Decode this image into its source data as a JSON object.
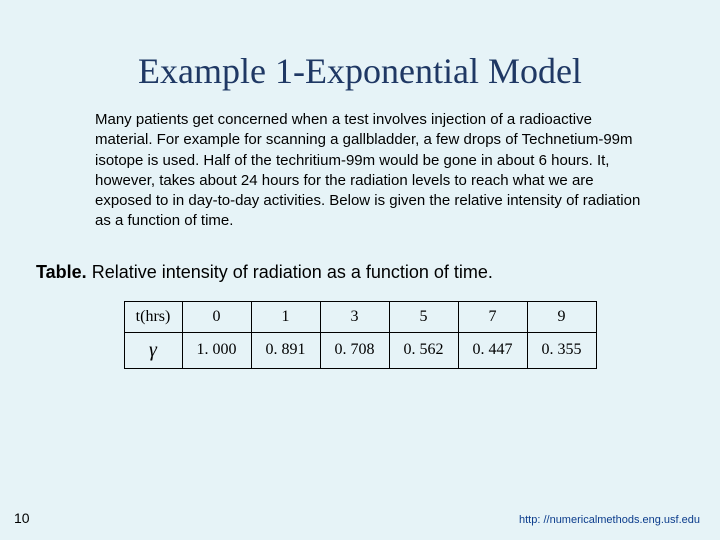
{
  "slide": {
    "title": "Example 1-Exponential Model",
    "body": "Many patients get concerned when a test involves injection of a radioactive material.  For example for scanning a gallbladder, a few drops of Technetium-99m isotope is used.  Half of the techritium-99m would be gone in about 6 hours.  It, however, takes about 24 hours for the radiation levels to reach what we are exposed to in day-to-day activities.  Below is given the relative intensity of radiation as a function of time.",
    "table_caption_bold": "Table.",
    "table_caption_rest": " Relative intensity of radiation as a function of time.",
    "page_number": "10",
    "footer_url": "http: //numericalmethods.eng.usf.edu"
  },
  "table": {
    "type": "table",
    "row_labels": [
      "t(hrs)",
      "γ"
    ],
    "columns": [
      "0",
      "1",
      "3",
      "5",
      "7",
      "9"
    ],
    "rows": [
      [
        "0",
        "1",
        "3",
        "5",
        "7",
        "9"
      ],
      [
        "1. 000",
        "0. 891",
        "0. 708",
        "0. 562",
        "0. 447",
        "0. 355"
      ]
    ],
    "border_color": "#000000",
    "background_color": "#e6f3f7",
    "cell_fontsize": 16,
    "font_family": "Times New Roman"
  },
  "colors": {
    "slide_bg": "#e6f3f7",
    "title_color": "#1f3864",
    "text_color": "#000000",
    "url_color": "#0b3c8c"
  },
  "typography": {
    "title_font": "Times New Roman",
    "title_size_pt": 36,
    "body_font": "Verdana",
    "body_size_pt": 15,
    "caption_size_pt": 18
  }
}
